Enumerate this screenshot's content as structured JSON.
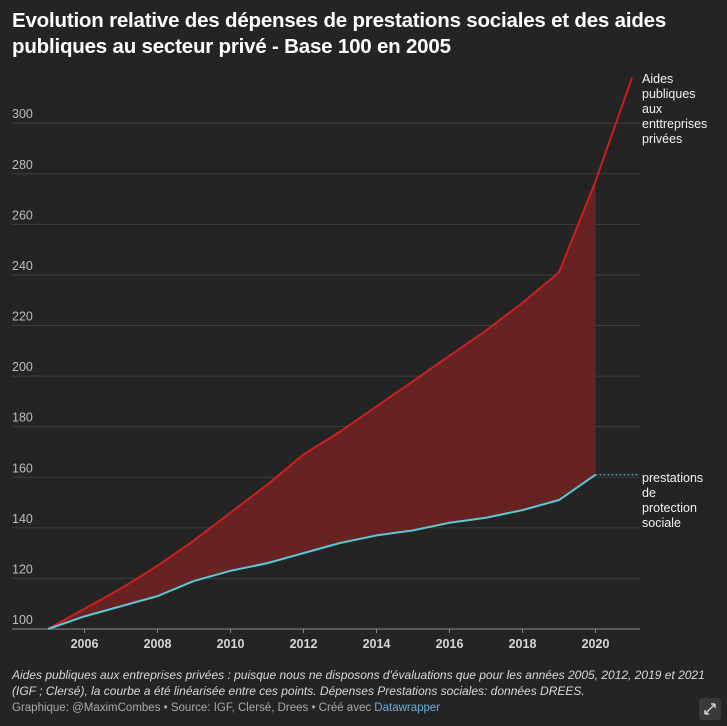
{
  "title": "Evolution relative des dépenses de prestations sociales et des aides publiques au secteur privé - Base 100 en 2005",
  "note": "Aides publiques aux entreprises privées : puisque nous ne disposons d'évaluations que pour les années 2005, 2012, 2019 et 2021 (IGF ; Clersé), la courbe a été linéarisée entre ces points. Dépenses Prestations sociales: données DREES.",
  "credit": {
    "prefix": "Graphique: @MaximCombes • Source: IGF, Clersé, Drees • Créé avec ",
    "tool": "Datawrapper"
  },
  "colors": {
    "aides": "#cc1f1f",
    "prestations": "#5bc8d6",
    "fill": "#6b2323",
    "grid": "#3d3d3d",
    "background": "#242424"
  },
  "expand_icon": "expand-icon",
  "chart_data": {
    "type": "line",
    "title": "Evolution relative des dépenses de prestations sociales et des aides publiques au secteur privé - Base 100 en 2005",
    "xlabel": "",
    "ylabel": "",
    "xlim": [
      2005,
      2021
    ],
    "ylim": [
      100,
      320
    ],
    "yticks": [
      100,
      120,
      140,
      160,
      180,
      200,
      220,
      240,
      260,
      280,
      300
    ],
    "xticks": [
      2006,
      2008,
      2010,
      2012,
      2014,
      2016,
      2018,
      2020
    ],
    "grid": "horizontal",
    "shaded_area_between_series": [
      2005,
      2020
    ],
    "series": [
      {
        "name": "Aides publiques aux enttreprises privées",
        "label_lines": [
          "Aides",
          "publiques",
          "aux",
          "enttreprises",
          "privées"
        ],
        "x": [
          2005,
          2006,
          2007,
          2008,
          2009,
          2010,
          2011,
          2012,
          2013,
          2014,
          2015,
          2016,
          2017,
          2018,
          2019,
          2020,
          2021
        ],
        "values": [
          100,
          108,
          116,
          125,
          135,
          146,
          157,
          169,
          178,
          188,
          198,
          208,
          218,
          229,
          241,
          277,
          318
        ]
      },
      {
        "name": "prestations de protection sociale",
        "label_lines": [
          "prestations",
          "de",
          "protection",
          "sociale"
        ],
        "x": [
          2005,
          2006,
          2007,
          2008,
          2009,
          2010,
          2011,
          2012,
          2013,
          2014,
          2015,
          2016,
          2017,
          2018,
          2019,
          2020
        ],
        "values": [
          100,
          105,
          109,
          113,
          119,
          123,
          126,
          130,
          134,
          137,
          139,
          142,
          144,
          147,
          151,
          161
        ]
      }
    ]
  }
}
